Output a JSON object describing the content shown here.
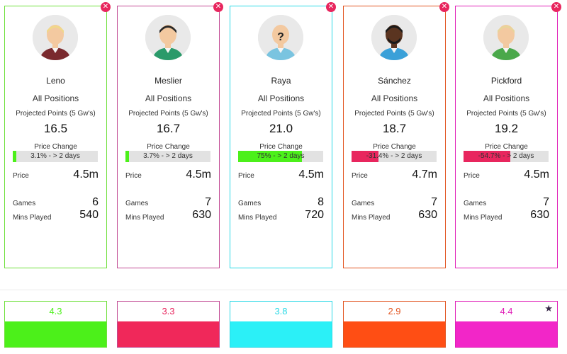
{
  "labels": {
    "positions": "All Positions",
    "projected_points": "Projected Points (5 Gw's)",
    "price_change": "Price Change",
    "price": "Price",
    "games": "Games",
    "mins_played": "Mins Played",
    "close_glyph": "✕",
    "star_glyph": "★"
  },
  "players": [
    {
      "name": "Leno",
      "projected_points": "16.5",
      "price_change_text": "3.1% - > 2 days",
      "price_change_pct": 3.1,
      "price": "4.5m",
      "games": "6",
      "mins": "540",
      "score": "4.3",
      "accent": "#6ee03a",
      "bar_color": "#4cf01a",
      "avatar": "blonde-maroon-icon"
    },
    {
      "name": "Meslier",
      "projected_points": "16.7",
      "price_change_text": "3.7% - > 2 days",
      "price_change_pct": 3.7,
      "price": "4.5m",
      "games": "7",
      "mins": "630",
      "score": "3.3",
      "accent": "#c24a93",
      "bar_color": "#4cf01a",
      "avatar": "dark-green-icon"
    },
    {
      "name": "Raya",
      "projected_points": "21.0",
      "price_change_text": "75% - > 2 days",
      "price_change_pct": 75,
      "price": "4.5m",
      "games": "8",
      "mins": "720",
      "score": "3.8",
      "accent": "#2bd9e6",
      "bar_color": "#4cf01a",
      "avatar": "unknown-player-icon"
    },
    {
      "name": "Sánchez",
      "projected_points": "18.7",
      "price_change_text": "-31.4% - > 2 days",
      "price_change_pct": -31.4,
      "price": "4.7m",
      "games": "7",
      "mins": "630",
      "score": "2.9",
      "accent": "#e2541f",
      "bar_color": "#e8265e",
      "avatar": "dark-blue-icon"
    },
    {
      "name": "Pickford",
      "projected_points": "19.2",
      "price_change_text": "-54.7% - > 2 days",
      "price_change_pct": -54.7,
      "price": "4.5m",
      "games": "7",
      "mins": "630",
      "score": "4.4",
      "accent": "#e020b8",
      "bar_color": "#e8265e",
      "avatar": "blonde-green-icon"
    }
  ],
  "score_colors": [
    {
      "text": "#4cf01a",
      "fill": "#4cf01a"
    },
    {
      "text": "#e8265e",
      "fill": "#f0285a"
    },
    {
      "text": "#2bd9e6",
      "fill": "#2bf0f7"
    },
    {
      "text": "#e2541f",
      "fill": "#ff4e14"
    },
    {
      "text": "#e020b8",
      "fill": "#f226c8"
    }
  ],
  "best_score_index": 4
}
